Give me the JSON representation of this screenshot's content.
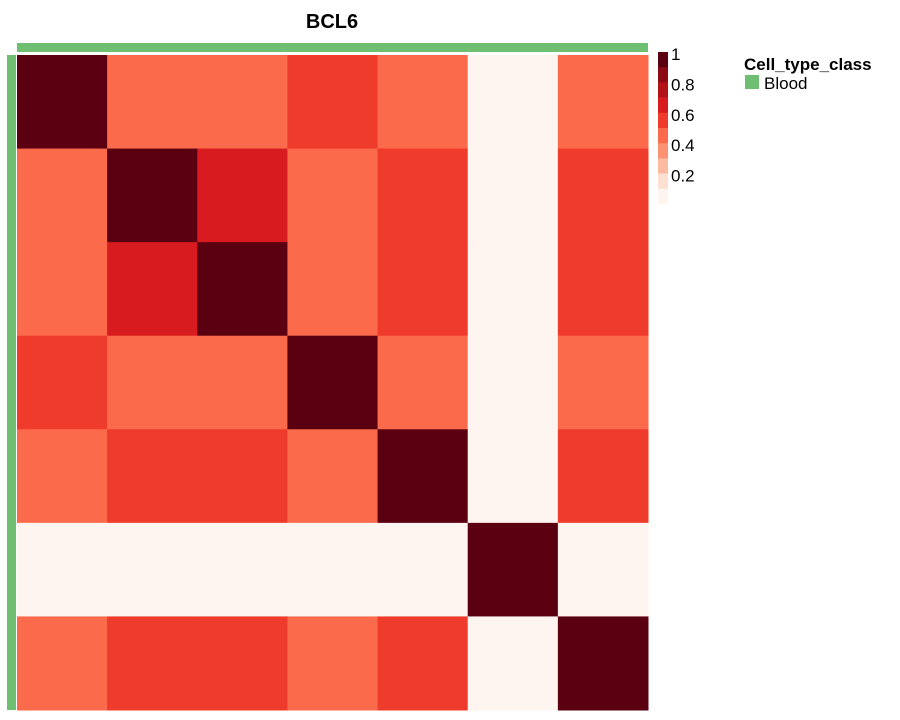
{
  "chart_data": {
    "type": "heatmap",
    "title": "BCL6",
    "matrix": [
      [
        1.0,
        0.45,
        0.45,
        0.55,
        0.45,
        0.05,
        0.45
      ],
      [
        0.45,
        1.0,
        0.65,
        0.45,
        0.55,
        0.05,
        0.55
      ],
      [
        0.45,
        0.65,
        1.0,
        0.45,
        0.55,
        0.05,
        0.55
      ],
      [
        0.55,
        0.45,
        0.45,
        1.0,
        0.45,
        0.05,
        0.45
      ],
      [
        0.45,
        0.55,
        0.55,
        0.45,
        1.0,
        0.05,
        0.55
      ],
      [
        0.05,
        0.05,
        0.05,
        0.05,
        0.05,
        1.0,
        0.05
      ],
      [
        0.45,
        0.55,
        0.55,
        0.45,
        0.55,
        0.05,
        1.0
      ]
    ],
    "color_scale": {
      "breaks": [
        0,
        0.1,
        0.2,
        0.3,
        0.4,
        0.5,
        0.6,
        0.7,
        0.8,
        0.9,
        1.0
      ],
      "colors": [
        "#fff5f0",
        "#fee0d2",
        "#fcbba1",
        "#fc9272",
        "#fb6a4a",
        "#ef3b2c",
        "#d81b1f",
        "#b01217",
        "#8b0a14",
        "#5a0010"
      ],
      "ticks": [
        "1",
        "0.8",
        "0.6",
        "0.4",
        "0.2"
      ],
      "tick_values": [
        1.0,
        0.8,
        0.6,
        0.4,
        0.2
      ]
    },
    "annotation": {
      "title": "Cell_type_class",
      "entries": [
        {
          "label": "Blood",
          "color": "#6fbf73"
        }
      ]
    }
  }
}
